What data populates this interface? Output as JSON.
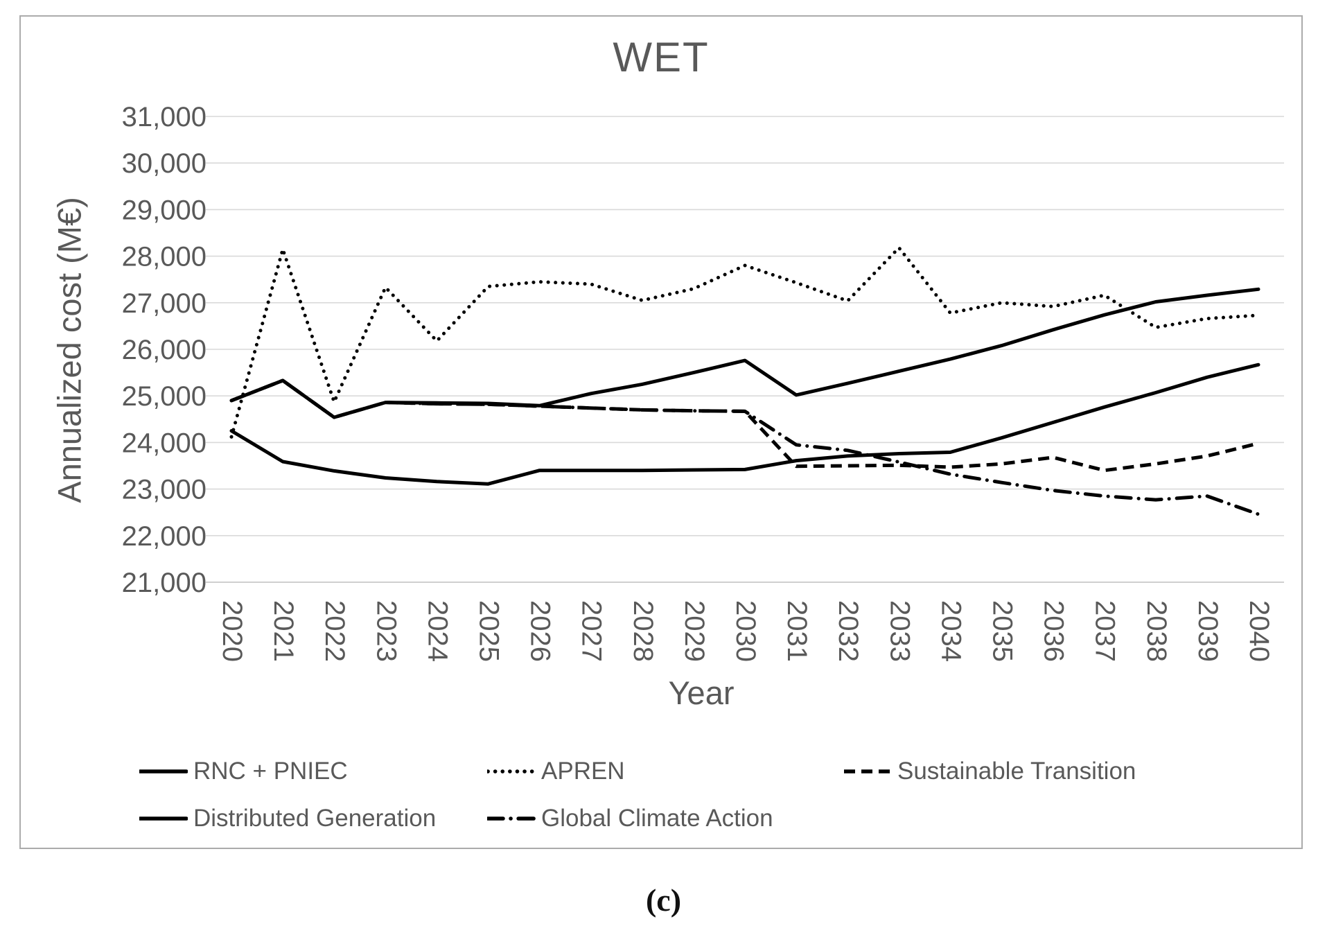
{
  "figure": {
    "title": "WET",
    "y_axis_title": "Annualized cost (M€)",
    "x_axis_title": "Year",
    "caption": "(c)"
  },
  "chart_data": {
    "type": "line",
    "title": "WET",
    "xlabel": "Year",
    "ylabel": "Annualized cost (M€)",
    "x": [
      2020,
      2021,
      2022,
      2023,
      2024,
      2025,
      2026,
      2027,
      2028,
      2029,
      2030,
      2031,
      2032,
      2033,
      2034,
      2035,
      2036,
      2037,
      2038,
      2039,
      2040
    ],
    "x_tick_labels": [
      "2020",
      "2021",
      "2022",
      "2023",
      "2024",
      "2025",
      "2026",
      "2027",
      "2028",
      "2029",
      "2030",
      "2031",
      "2032",
      "2033",
      "2034",
      "2035",
      "2036",
      "2037",
      "2038",
      "2039",
      "2040"
    ],
    "ylim": [
      21000,
      31000
    ],
    "ytick_step": 1000,
    "y_tick_labels": [
      "31,000",
      "30,000",
      "29,000",
      "28,000",
      "27,000",
      "26,000",
      "25,000",
      "24,000",
      "23,000",
      "22,000",
      "21,000"
    ],
    "grid": "horizontal",
    "legend_position": "bottom",
    "series": [
      {
        "name": "RNC + PNIEC",
        "style": "solid",
        "z": 3,
        "values": [
          24900,
          25330,
          24540,
          24860,
          24850,
          24840,
          24790,
          25050,
          25250,
          25500,
          25760,
          25020,
          25270,
          25530,
          25790,
          26080,
          26420,
          26740,
          27020,
          27160,
          27290
        ]
      },
      {
        "name": "APREN",
        "style": "dotted",
        "z": 5,
        "values": [
          24120,
          28150,
          24870,
          27330,
          26180,
          27350,
          27450,
          27400,
          27050,
          27300,
          27800,
          27430,
          27040,
          28180,
          26780,
          27000,
          26920,
          27160,
          26470,
          26660,
          26730
        ]
      },
      {
        "name": "Sustainable Transition",
        "style": "dashed",
        "z": 1,
        "values": [
          24900,
          25330,
          24540,
          24860,
          24830,
          24820,
          24780,
          24740,
          24700,
          24680,
          24670,
          23490,
          23500,
          23510,
          23470,
          23540,
          23680,
          23400,
          23540,
          23710,
          23980
        ]
      },
      {
        "name": "Distributed Generation",
        "style": "solid",
        "z": 4,
        "values": [
          24250,
          23590,
          23390,
          23240,
          23160,
          23110,
          23400,
          23400,
          23400,
          23410,
          23420,
          23610,
          23710,
          23760,
          23790,
          24100,
          24430,
          24760,
          25070,
          25400,
          25670
        ]
      },
      {
        "name": "Global Climate Action",
        "style": "dashdot",
        "z": 2,
        "values": [
          24900,
          25330,
          24540,
          24860,
          24830,
          24820,
          24780,
          24740,
          24700,
          24680,
          24670,
          23950,
          23830,
          23580,
          23320,
          23140,
          22970,
          22850,
          22770,
          22850,
          22460
        ]
      }
    ]
  },
  "legend": {
    "rows": [
      [
        "RNC + PNIEC",
        "APREN",
        "Sustainable Transition"
      ],
      [
        "Distributed Generation",
        "Global Climate Action"
      ]
    ]
  },
  "colors": {
    "line": "#000000",
    "text": "#595959",
    "gridline": "#d9d9d9",
    "axis_line": "#bfbfbf",
    "border": "#ababab",
    "background": "#ffffff"
  }
}
